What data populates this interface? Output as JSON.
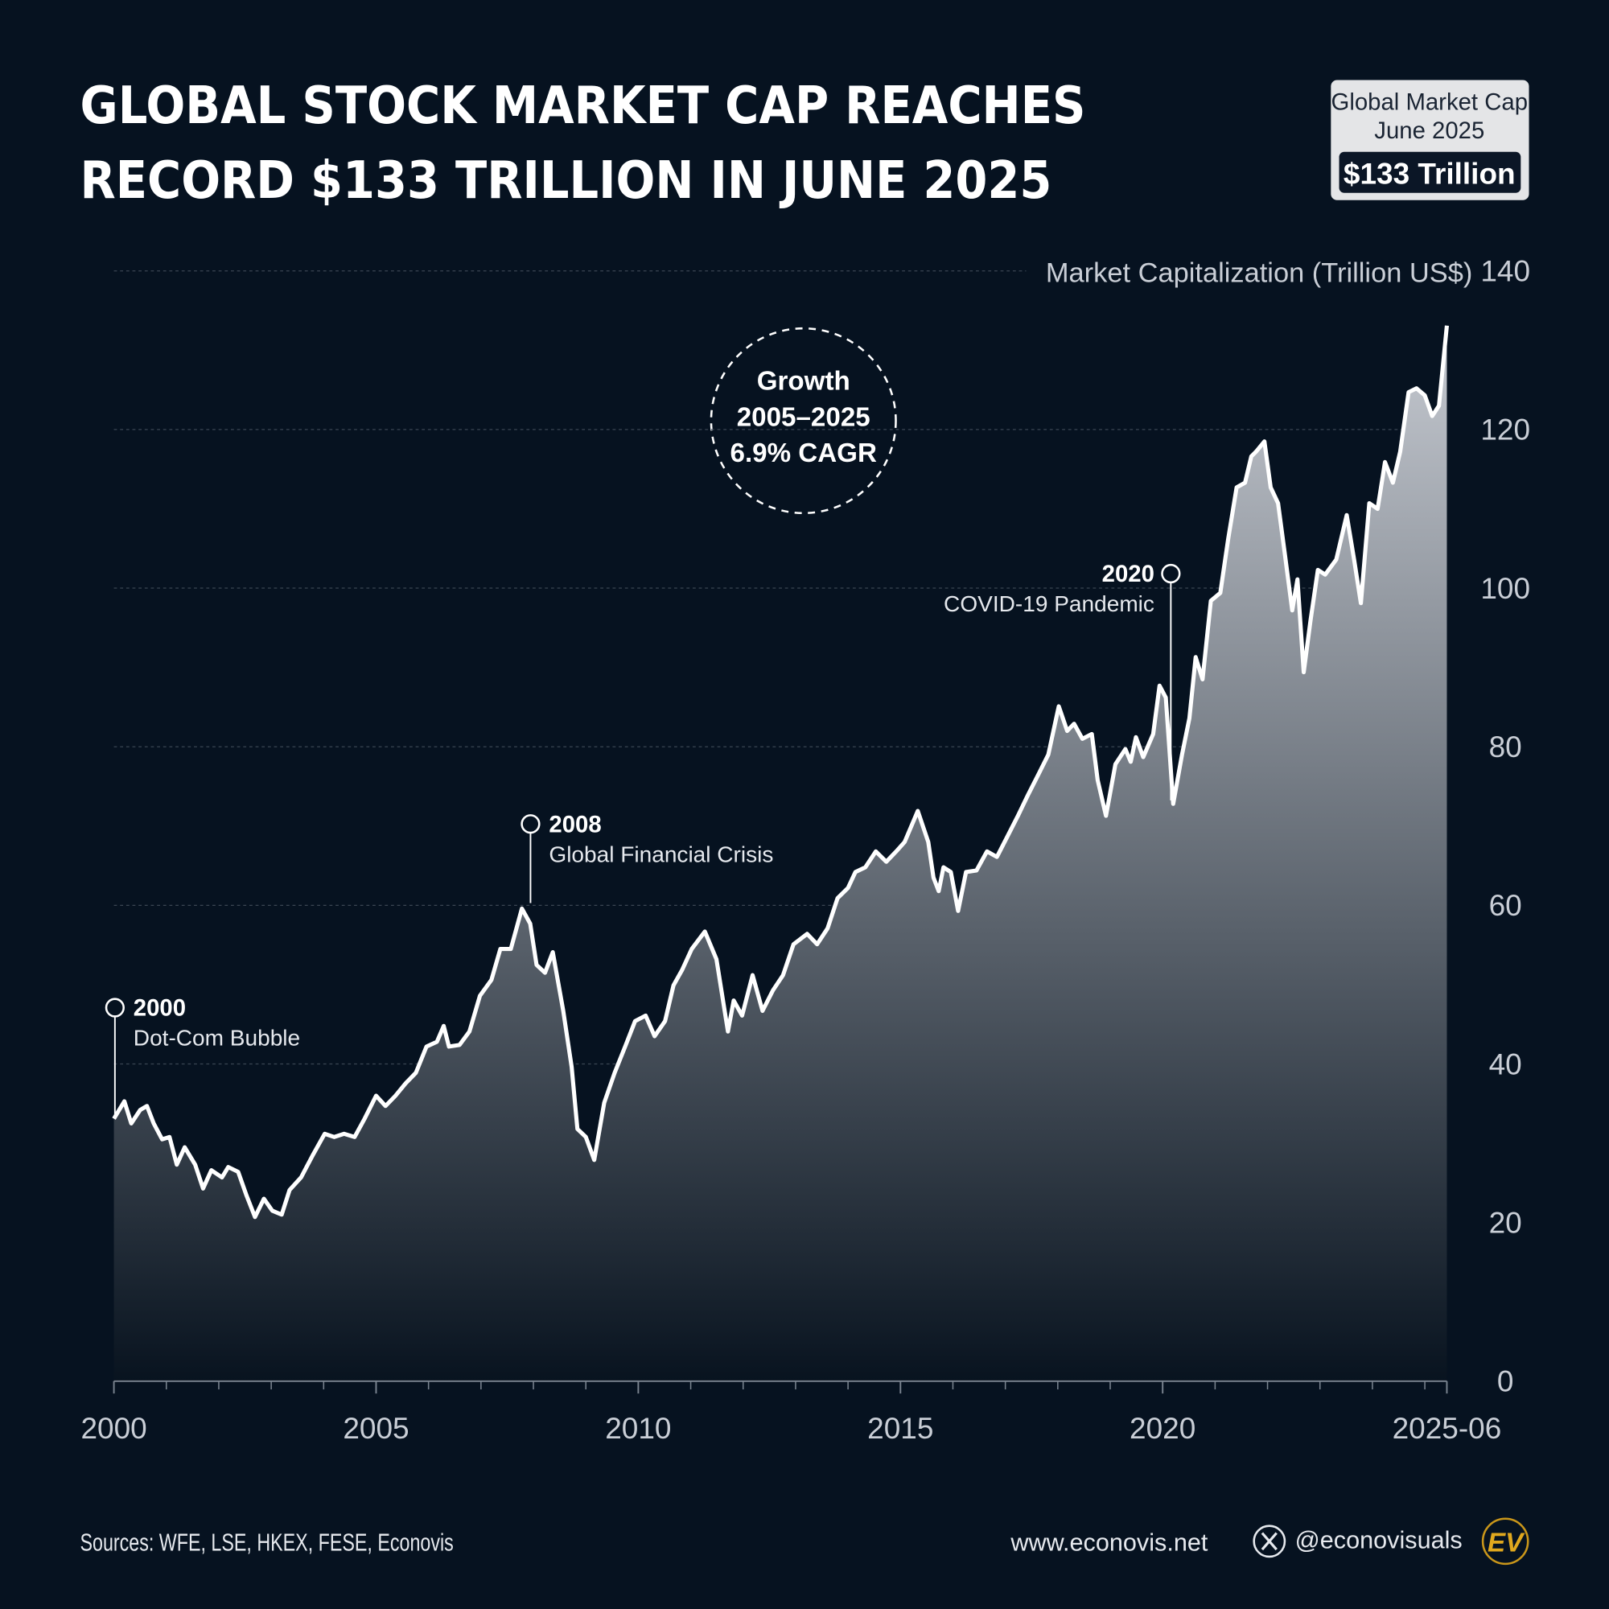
{
  "chart_data": {
    "type": "area",
    "title": [
      "GLOBAL STOCK MARKET CAP REACHES",
      "RECORD $133 TRILLION IN JUNE 2025"
    ],
    "badge": {
      "title": "Global Market Cap",
      "date": "June 2025",
      "value": "$133 Trillion"
    },
    "y_label": "Market Capitalization (Trillion US$)",
    "growth_note": [
      "Growth",
      "2005–2025",
      "6.9% CAGR"
    ],
    "annotations": [
      {
        "year": "2000",
        "label": "Dot-Com Bubble"
      },
      {
        "year": "2008",
        "label": "Global Financial Crisis"
      },
      {
        "year": "2020",
        "label": "COVID-19 Pandemic"
      }
    ],
    "footer": {
      "sources": "Sources: WFE, LSE, HKEX, FESE, Econovis",
      "website": "www.econovis.net",
      "handle": "@econovisuals",
      "logo": "EV"
    },
    "color": "#ffffff",
    "fill_top": "#c6cad1",
    "fill_bottom": "#08131f",
    "grid": true,
    "xlim": [
      2000,
      2025.42
    ],
    "xticks": [
      2000,
      2005,
      2010,
      2015,
      2020,
      {
        "value": 2025.42,
        "label": "2025-06"
      }
    ],
    "xminor_ticks": [
      2001,
      2002,
      2003,
      2004,
      2006,
      2007,
      2008,
      2009,
      2011,
      2012,
      2013,
      2014,
      2016,
      2017,
      2018,
      2019,
      2021,
      2022,
      2023,
      2024,
      2025
    ],
    "ylim": [
      0,
      140
    ],
    "yticks": [
      0,
      20,
      40,
      60,
      80,
      100,
      120,
      140
    ],
    "x": [
      2000,
      2000.2,
      2000.33,
      2000.5,
      2000.63,
      2000.76,
      2000.92,
      2001.06,
      2001.2,
      2001.35,
      2001.55,
      2001.7,
      2001.86,
      2002.06,
      2002.18,
      2002.37,
      2002.53,
      2002.69,
      2002.86,
      2003.02,
      2003.2,
      2003.35,
      2003.57,
      2003.8,
      2004.02,
      2004.2,
      2004.39,
      2004.59,
      2004.78,
      2005,
      2005.18,
      2005.37,
      2005.57,
      2005.76,
      2005.96,
      2006.16,
      2006.29,
      2006.39,
      2006.59,
      2006.78,
      2006.98,
      2007.2,
      2007.37,
      2007.57,
      2007.78,
      2007.94,
      2008.06,
      2008.22,
      2008.37,
      2008.57,
      2008.73,
      2008.84,
      2009,
      2009.16,
      2009.35,
      2009.55,
      2009.75,
      2009.94,
      2010.14,
      2010.31,
      2010.51,
      2010.67,
      2010.84,
      2011.02,
      2011.27,
      2011.49,
      2011.71,
      2011.82,
      2011.98,
      2012.18,
      2012.37,
      2012.57,
      2012.76,
      2012.96,
      2013.22,
      2013.41,
      2013.61,
      2013.8,
      2014,
      2014.14,
      2014.33,
      2014.53,
      2014.73,
      2014.92,
      2015.08,
      2015.33,
      2015.53,
      2015.63,
      2015.73,
      2015.82,
      2015.96,
      2016.1,
      2016.25,
      2016.45,
      2016.65,
      2016.84,
      2017.04,
      2017.24,
      2017.43,
      2017.63,
      2017.82,
      2018.02,
      2018.18,
      2018.31,
      2018.47,
      2018.65,
      2018.76,
      2018.92,
      2019.1,
      2019.29,
      2019.39,
      2019.49,
      2019.63,
      2019.82,
      2019.94,
      2020.06,
      2020.2,
      2020.37,
      2020.51,
      2020.63,
      2020.76,
      2020.92,
      2021.1,
      2021.25,
      2021.41,
      2021.57,
      2021.69,
      2021.78,
      2021.94,
      2022.06,
      2022.2,
      2022.33,
      2022.47,
      2022.57,
      2022.69,
      2022.82,
      2022.96,
      2023.1,
      2023.31,
      2023.51,
      2023.65,
      2023.78,
      2023.94,
      2024.1,
      2024.24,
      2024.39,
      2024.53,
      2024.69,
      2024.84,
      2025,
      2025.14,
      2025.27,
      2025.42
    ],
    "values": [
      33.1,
      35.3,
      32.5,
      34.2,
      34.7,
      32.5,
      30.5,
      30.8,
      27.3,
      29.5,
      27.3,
      24.3,
      26.6,
      25.7,
      27.0,
      26.4,
      23.4,
      20.7,
      23.0,
      21.5,
      21.0,
      24.1,
      25.7,
      28.6,
      31.2,
      30.8,
      31.2,
      30.8,
      33.1,
      36.0,
      34.7,
      36.0,
      37.6,
      38.9,
      42.2,
      42.8,
      44.8,
      42.2,
      42.4,
      44.1,
      48.6,
      50.6,
      54.5,
      54.5,
      59.6,
      57.7,
      52.5,
      51.5,
      54.1,
      46.7,
      39.6,
      31.8,
      30.8,
      27.9,
      35.1,
      38.9,
      42.2,
      45.4,
      46.1,
      43.5,
      45.4,
      49.9,
      51.9,
      54.5,
      56.7,
      53.2,
      44.1,
      48.0,
      46.1,
      51.2,
      46.7,
      49.3,
      51.2,
      55.1,
      56.4,
      55.1,
      57.1,
      60.9,
      62.2,
      64.2,
      64.8,
      66.8,
      65.5,
      66.8,
      68.0,
      71.9,
      68.0,
      63.5,
      61.8,
      64.8,
      64.2,
      59.3,
      64.2,
      64.4,
      66.8,
      66.1,
      68.7,
      71.3,
      73.9,
      76.5,
      79.0,
      85.1,
      82.0,
      82.9,
      81.0,
      81.6,
      75.8,
      71.3,
      77.8,
      79.7,
      78.1,
      81.2,
      78.7,
      81.6,
      87.7,
      86.2,
      72.8,
      79.0,
      83.6,
      91.3,
      88.5,
      98.4,
      99.4,
      106.2,
      112.7,
      113.3,
      116.6,
      117.2,
      118.5,
      112.7,
      110.7,
      104.3,
      97.2,
      101.1,
      89.4,
      95.9,
      102.3,
      101.7,
      103.6,
      109.2,
      103.6,
      98.1,
      110.7,
      110.0,
      115.9,
      113.3,
      117.2,
      124.7,
      125.2,
      124.3,
      121.7,
      123.0,
      133.1
    ]
  }
}
